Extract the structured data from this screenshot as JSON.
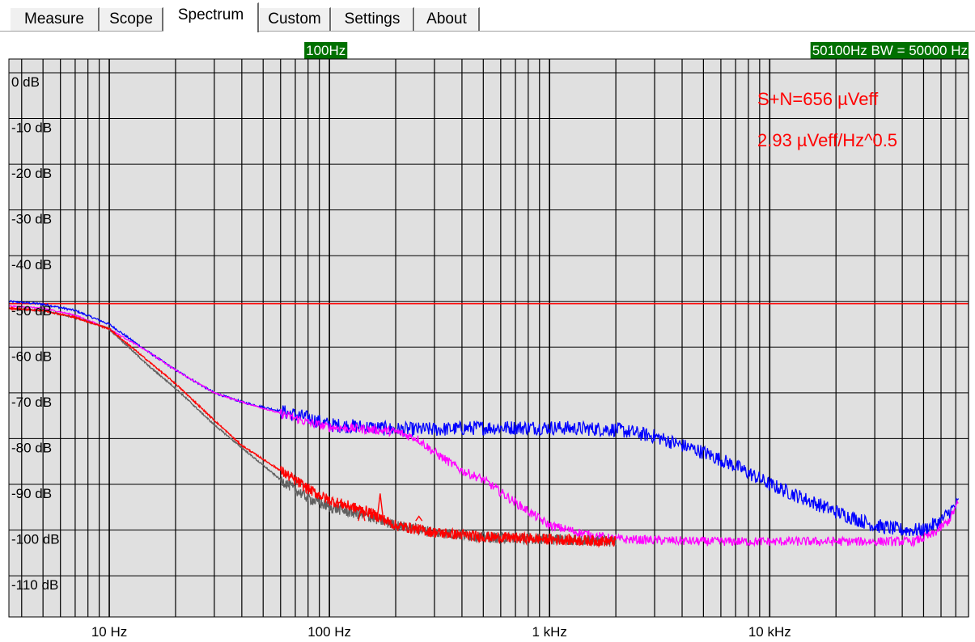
{
  "tabs": [
    {
      "label": "Measure",
      "active": false
    },
    {
      "label": "Scope",
      "active": false
    },
    {
      "label": "Spectrum",
      "active": true
    },
    {
      "label": "Custom",
      "active": false
    },
    {
      "label": "Settings",
      "active": false
    },
    {
      "label": "About",
      "active": false
    }
  ],
  "colors": {
    "plot_background": "#e0e0e0",
    "grid": "#000000",
    "marker_background": "#007000",
    "marker_text": "#ffffff",
    "readout": "#ff0000"
  },
  "chart_data": {
    "type": "line",
    "x_scale": "log",
    "xlim": [
      3.5,
      80000
    ],
    "ylim": [
      -119,
      3
    ],
    "x_ticks": [
      {
        "value": 10,
        "label": "10 Hz"
      },
      {
        "value": 100,
        "label": "100 Hz"
      },
      {
        "value": 1000,
        "label": "1 kHz"
      },
      {
        "value": 10000,
        "label": "10 kHz"
      }
    ],
    "y_ticks": [
      {
        "value": 0,
        "label": "0 dB"
      },
      {
        "value": -10,
        "label": "-10 dB"
      },
      {
        "value": -20,
        "label": "-20 dB"
      },
      {
        "value": -30,
        "label": "-30 dB"
      },
      {
        "value": -40,
        "label": "-40 dB"
      },
      {
        "value": -50,
        "label": "-50 dB"
      },
      {
        "value": -60,
        "label": "-60 dB"
      },
      {
        "value": -70,
        "label": "-70 dB"
      },
      {
        "value": -80,
        "label": "-80 dB"
      },
      {
        "value": -90,
        "label": "-90 dB"
      },
      {
        "value": -100,
        "label": "-100 dB"
      },
      {
        "value": -110,
        "label": "-110 dB"
      }
    ],
    "markers": {
      "left_freq": 100,
      "left_label": "100Hz",
      "right_freq": 50100,
      "right_label": "50100Hz BW = 50000 Hz"
    },
    "readouts": {
      "line1": "S+N=656 µVeff",
      "line2": "2.93 µVeff/Hz^0.5"
    },
    "reference_line": {
      "value": -50.5,
      "color": "#ff0000"
    },
    "series": [
      {
        "color": "#0000ff",
        "noise": 1.6,
        "points": [
          [
            3.5,
            -50
          ],
          [
            5,
            -50.6
          ],
          [
            7,
            -52
          ],
          [
            10,
            -55
          ],
          [
            15,
            -61
          ],
          [
            20,
            -65
          ],
          [
            30,
            -70
          ],
          [
            40,
            -72
          ],
          [
            60,
            -74
          ],
          [
            80,
            -75.5
          ],
          [
            100,
            -77
          ],
          [
            150,
            -77.5
          ],
          [
            200,
            -78
          ],
          [
            300,
            -78
          ],
          [
            500,
            -77.6
          ],
          [
            1000,
            -77.6
          ],
          [
            2000,
            -78
          ],
          [
            3000,
            -79.5
          ],
          [
            5000,
            -83
          ],
          [
            7000,
            -86
          ],
          [
            10000,
            -90
          ],
          [
            20000,
            -96
          ],
          [
            30000,
            -99
          ],
          [
            40000,
            -100
          ],
          [
            50000,
            -100
          ],
          [
            60000,
            -98
          ],
          [
            72000,
            -94
          ]
        ]
      },
      {
        "color": "#ff00ff",
        "noise": 1.0,
        "points": [
          [
            3.5,
            -51
          ],
          [
            5,
            -51.5
          ],
          [
            7,
            -53
          ],
          [
            10,
            -56
          ],
          [
            15,
            -61
          ],
          [
            20,
            -65
          ],
          [
            30,
            -70
          ],
          [
            40,
            -72
          ],
          [
            60,
            -74.5
          ],
          [
            80,
            -76.5
          ],
          [
            100,
            -77.5
          ],
          [
            150,
            -78
          ],
          [
            200,
            -78.5
          ],
          [
            250,
            -80
          ],
          [
            300,
            -83
          ],
          [
            400,
            -87
          ],
          [
            500,
            -89
          ],
          [
            700,
            -94
          ],
          [
            1000,
            -99
          ],
          [
            1500,
            -101
          ],
          [
            2000,
            -102
          ],
          [
            5000,
            -102.5
          ],
          [
            10000,
            -102.5
          ],
          [
            30000,
            -102.5
          ],
          [
            45000,
            -102.5
          ],
          [
            55000,
            -101
          ],
          [
            65000,
            -98
          ],
          [
            72000,
            -94
          ]
        ]
      },
      {
        "color": "#606060",
        "noise": 1.2,
        "points": [
          [
            3.5,
            -51.5
          ],
          [
            5,
            -52
          ],
          [
            7,
            -53.5
          ],
          [
            10,
            -56
          ],
          [
            15,
            -64
          ],
          [
            20,
            -69
          ],
          [
            30,
            -77
          ],
          [
            40,
            -82
          ],
          [
            60,
            -89
          ],
          [
            80,
            -93
          ],
          [
            100,
            -95
          ],
          [
            150,
            -97
          ],
          [
            200,
            -99
          ],
          [
            300,
            -100.5
          ],
          [
            500,
            -101.5
          ],
          [
            1000,
            -102
          ],
          [
            2000,
            -102.5
          ]
        ]
      },
      {
        "color": "#ff0000",
        "noise": 1.2,
        "points": [
          [
            3.5,
            -51.5
          ],
          [
            5,
            -52
          ],
          [
            7,
            -53.5
          ],
          [
            10,
            -56
          ],
          [
            15,
            -63
          ],
          [
            20,
            -68
          ],
          [
            30,
            -76
          ],
          [
            40,
            -81.5
          ],
          [
            60,
            -87
          ],
          [
            80,
            -91
          ],
          [
            100,
            -93.5
          ],
          [
            150,
            -96
          ],
          [
            200,
            -99
          ],
          [
            300,
            -100.5
          ],
          [
            500,
            -101.5
          ],
          [
            1000,
            -102
          ],
          [
            2000,
            -102.5
          ]
        ]
      }
    ],
    "spurs": [
      {
        "color": "#ff0000",
        "freq": 170,
        "level": -92
      },
      {
        "color": "#ff0000",
        "freq": 255,
        "level": -97
      },
      {
        "color": "#ff0000",
        "freq": 140,
        "level": -95
      }
    ]
  }
}
